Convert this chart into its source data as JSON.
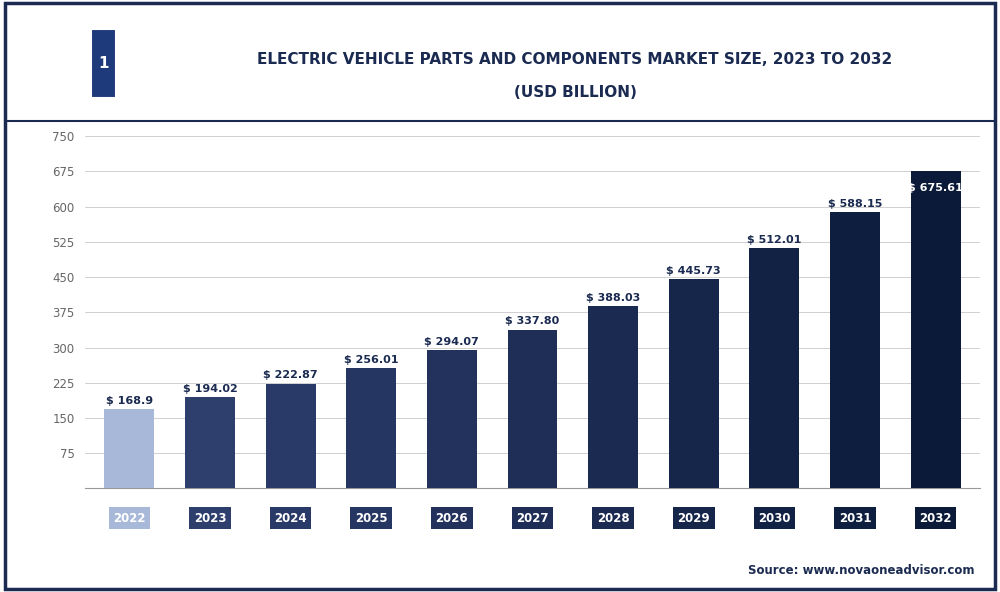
{
  "years": [
    "2022",
    "2023",
    "2024",
    "2025",
    "2026",
    "2027",
    "2028",
    "2029",
    "2030",
    "2031",
    "2032"
  ],
  "values": [
    168.9,
    194.02,
    222.87,
    256.01,
    294.07,
    337.8,
    388.03,
    445.73,
    512.01,
    588.15,
    675.61
  ],
  "bar_colors": [
    "#a8b8d8",
    "#2e3f6e",
    "#2a3a68",
    "#263662",
    "#22325c",
    "#1e2e56",
    "#1a2a50",
    "#16264a",
    "#122244",
    "#0e1e3e",
    "#0a1a38"
  ],
  "tick_bg_colors": [
    "#a8b8d8",
    "#2e3f6e",
    "#2a3a68",
    "#263662",
    "#22325c",
    "#1e2e56",
    "#1a2a50",
    "#16264a",
    "#122244",
    "#0e1e3e",
    "#0a1a38"
  ],
  "title_line1": "ELECTRIC VEHICLE PARTS AND COMPONENTS MARKET SIZE, 2023 TO 2032",
  "title_line2": "(USD BILLION)",
  "source_text": "Source: www.novaoneadvisor.com",
  "ylim": [
    0,
    750
  ],
  "yticks": [
    0,
    75,
    150,
    225,
    300,
    375,
    450,
    525,
    600,
    675,
    750
  ],
  "background_color": "#ffffff",
  "grid_color": "#d0d0d0",
  "title_color": "#1a2a50",
  "bar_width": 0.62,
  "logo_bg": "#1e3a7a",
  "border_color": "#1a2a50",
  "label_dark_color": "#1a2a50",
  "label_last_color": "#ffffff"
}
